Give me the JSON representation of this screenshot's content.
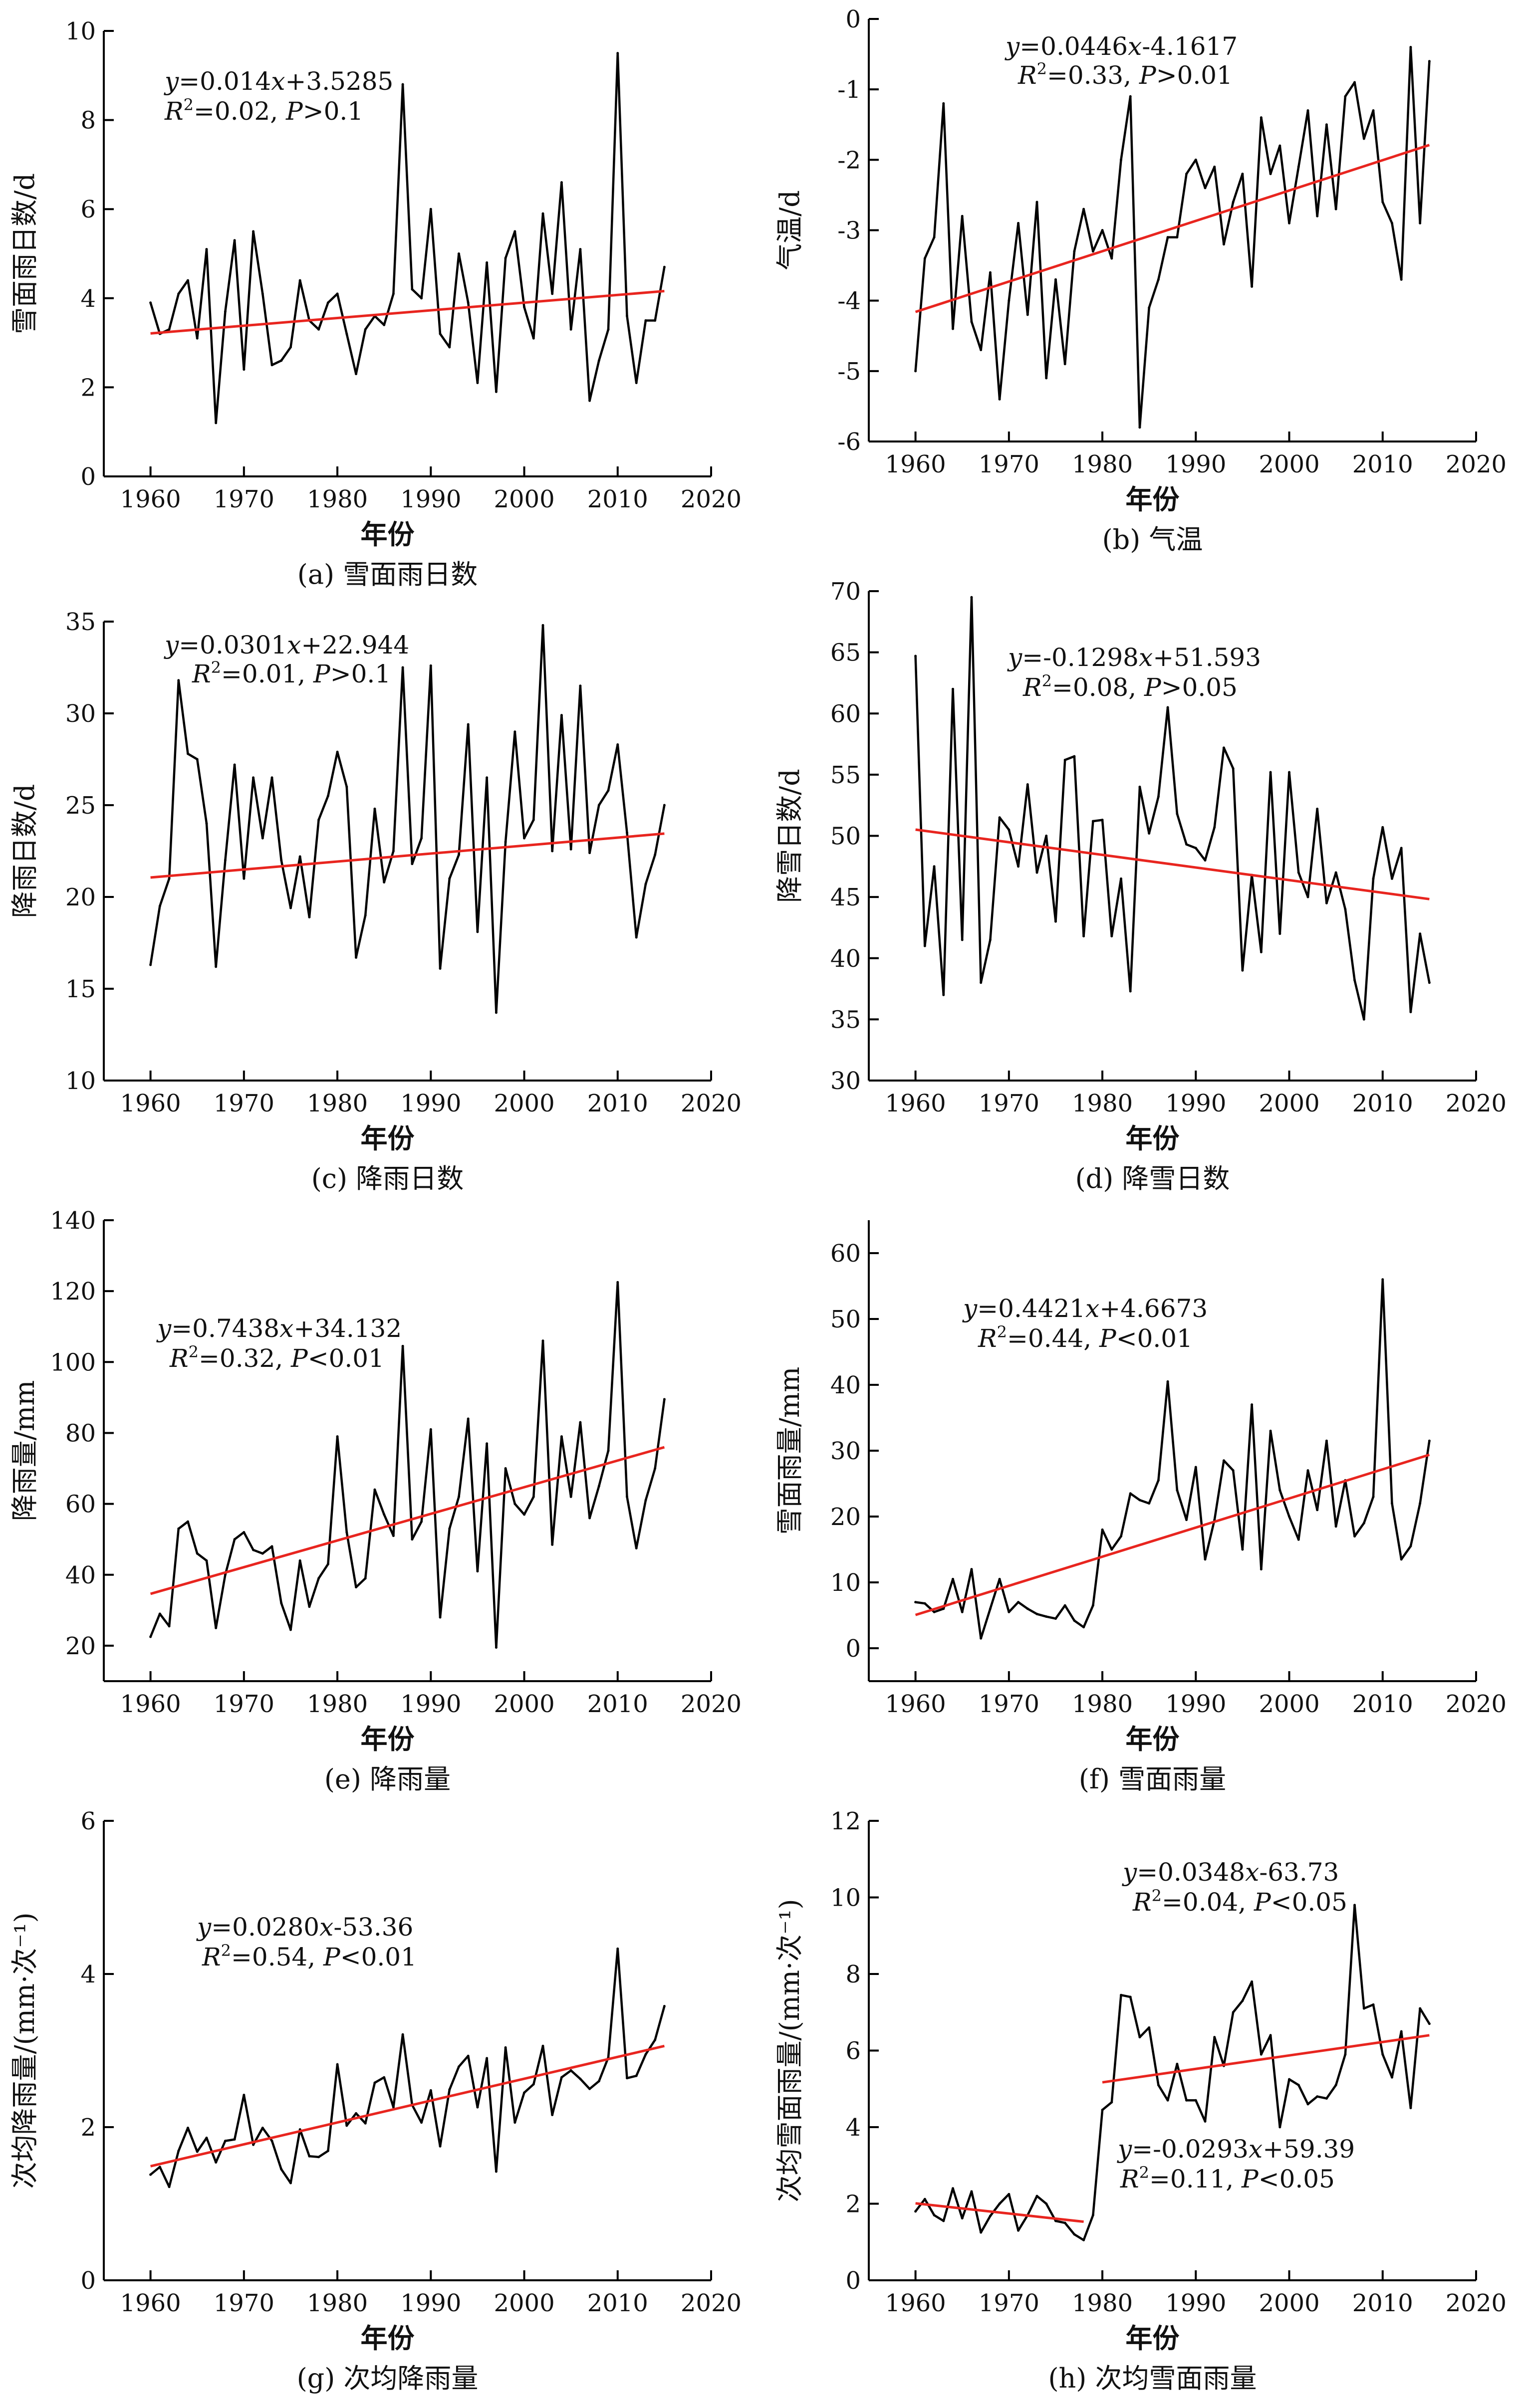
{
  "chart_data": [
    {
      "id": "a",
      "type": "line",
      "caption": "(a) 雪面雨日数",
      "xlabel": "年份",
      "ylabel": "雪面雨日数/d",
      "xlim": [
        1955,
        2020
      ],
      "ylim": [
        0,
        10
      ],
      "xticks": [
        1960,
        1970,
        1980,
        1990,
        2000,
        2010,
        2020
      ],
      "yticks": [
        0,
        2,
        4,
        6,
        8,
        10
      ],
      "x": [
        1960,
        1961,
        1962,
        1963,
        1964,
        1965,
        1966,
        1967,
        1968,
        1969,
        1970,
        1971,
        1972,
        1973,
        1974,
        1975,
        1976,
        1977,
        1978,
        1979,
        1980,
        1981,
        1982,
        1983,
        1984,
        1985,
        1986,
        1987,
        1988,
        1989,
        1990,
        1991,
        1992,
        1993,
        1994,
        1995,
        1996,
        1997,
        1998,
        1999,
        2000,
        2001,
        2002,
        2003,
        2004,
        2005,
        2006,
        2007,
        2008,
        2009,
        2010,
        2011,
        2012,
        2013,
        2014,
        2015
      ],
      "values": [
        3.9,
        3.2,
        3.3,
        4.1,
        4.4,
        3.1,
        5.1,
        1.2,
        3.7,
        5.3,
        2.4,
        5.5,
        4.1,
        2.5,
        2.6,
        2.9,
        4.4,
        3.5,
        3.3,
        3.9,
        4.1,
        3.2,
        2.3,
        3.3,
        3.6,
        3.4,
        4.1,
        8.8,
        4.2,
        4.0,
        6.0,
        3.2,
        2.9,
        5.0,
        3.9,
        2.1,
        4.8,
        1.9,
        4.9,
        5.5,
        3.8,
        3.1,
        5.9,
        4.1,
        6.6,
        3.3,
        5.1,
        1.7,
        2.6,
        3.3,
        9.5,
        3.6,
        2.1,
        3.5,
        3.5,
        4.7
      ],
      "trend": {
        "x": [
          1960,
          2015
        ],
        "y": [
          3.21,
          4.16
        ]
      },
      "annotations": [
        {
          "text": "y=0.014x+3.5285"
        },
        {
          "text": "R²=0.02, P>0.1"
        }
      ]
    },
    {
      "id": "b",
      "type": "line",
      "caption": "(b) 气温",
      "xlabel": "年份",
      "ylabel": "气温/d",
      "xlim": [
        1955,
        2020
      ],
      "ylim": [
        -6,
        0
      ],
      "xticks": [
        1960,
        1970,
        1980,
        1990,
        2000,
        2010,
        2020
      ],
      "yticks": [
        0,
        -1,
        -2,
        -3,
        -4,
        -5,
        -6
      ],
      "x": [
        1960,
        1961,
        1962,
        1963,
        1964,
        1965,
        1966,
        1967,
        1968,
        1969,
        1970,
        1971,
        1972,
        1973,
        1974,
        1975,
        1976,
        1977,
        1978,
        1979,
        1980,
        1981,
        1982,
        1983,
        1984,
        1985,
        1986,
        1987,
        1988,
        1989,
        1990,
        1991,
        1992,
        1993,
        1994,
        1995,
        1996,
        1997,
        1998,
        1999,
        2000,
        2001,
        2002,
        2003,
        2004,
        2005,
        2006,
        2007,
        2008,
        2009,
        2010,
        2011,
        2012,
        2013,
        2014,
        2015
      ],
      "values": [
        -5.0,
        -3.4,
        -3.1,
        -1.2,
        -4.4,
        -2.8,
        -4.3,
        -4.7,
        -3.6,
        -5.4,
        -4.0,
        -2.9,
        -4.2,
        -2.6,
        -5.1,
        -3.7,
        -4.9,
        -3.3,
        -2.7,
        -3.3,
        -3.0,
        -3.4,
        -2.0,
        -1.1,
        -5.8,
        -4.1,
        -3.7,
        -3.1,
        -3.1,
        -2.2,
        -2.0,
        -2.4,
        -2.1,
        -3.2,
        -2.6,
        -2.2,
        -3.8,
        -1.4,
        -2.2,
        -1.8,
        -2.9,
        -2.1,
        -1.3,
        -2.8,
        -1.5,
        -2.7,
        -1.1,
        -0.9,
        -1.7,
        -1.3,
        -2.6,
        -2.9,
        -3.7,
        -0.4,
        -2.9,
        -0.6
      ],
      "trend": {
        "x": [
          1960,
          2015
        ],
        "y": [
          -4.16,
          -1.79
        ]
      },
      "annotations": [
        {
          "text": "y=0.0446x-4.1617"
        },
        {
          "text": "R²=0.33, P>0.01"
        }
      ]
    },
    {
      "id": "c",
      "type": "line",
      "caption": "(c) 降雨日数",
      "xlabel": "年份",
      "ylabel": "降雨日数/d",
      "xlim": [
        1955,
        2020
      ],
      "ylim": [
        10,
        35
      ],
      "xticks": [
        1960,
        1970,
        1980,
        1990,
        2000,
        2010,
        2020
      ],
      "yticks": [
        10,
        15,
        20,
        25,
        30,
        35
      ],
      "x": [
        1960,
        1961,
        1962,
        1963,
        1964,
        1965,
        1966,
        1967,
        1968,
        1969,
        1970,
        1971,
        1972,
        1973,
        1974,
        1975,
        1976,
        1977,
        1978,
        1979,
        1980,
        1981,
        1982,
        1983,
        1984,
        1985,
        1986,
        1987,
        1988,
        1989,
        1990,
        1991,
        1992,
        1993,
        1994,
        1995,
        1996,
        1997,
        1998,
        1999,
        2000,
        2001,
        2002,
        2003,
        2004,
        2005,
        2006,
        2007,
        2008,
        2009,
        2010,
        2011,
        2012,
        2013,
        2014,
        2015
      ],
      "values": [
        16.3,
        19.5,
        21.0,
        31.8,
        27.8,
        27.5,
        24.0,
        16.2,
        22.0,
        27.2,
        21.0,
        26.5,
        23.2,
        26.5,
        22.0,
        19.4,
        22.2,
        18.9,
        24.2,
        25.5,
        27.9,
        26.0,
        16.7,
        19.0,
        24.8,
        20.8,
        22.5,
        32.5,
        21.8,
        23.2,
        32.6,
        16.1,
        21.0,
        22.3,
        29.4,
        18.1,
        26.5,
        13.7,
        23.0,
        29.0,
        23.2,
        24.2,
        34.8,
        22.5,
        29.9,
        22.6,
        31.5,
        22.4,
        25.0,
        25.8,
        28.3,
        23.5,
        17.8,
        20.7,
        22.3,
        25.0
      ],
      "trend": {
        "x": [
          1960,
          2015
        ],
        "y": [
          21.06,
          23.45
        ]
      },
      "annotations": [
        {
          "text": "y=0.0301x+22.944"
        },
        {
          "text": "R²=0.01, P>0.1"
        }
      ]
    },
    {
      "id": "d",
      "type": "line",
      "caption": "(d) 降雪日数",
      "xlabel": "年份",
      "ylabel": "降雪日数/d",
      "xlim": [
        1955,
        2020
      ],
      "ylim": [
        30,
        70
      ],
      "xticks": [
        1960,
        1970,
        1980,
        1990,
        2000,
        2010,
        2020
      ],
      "yticks": [
        30,
        35,
        40,
        45,
        50,
        55,
        60,
        65,
        70
      ],
      "x": [
        1960,
        1961,
        1962,
        1963,
        1964,
        1965,
        1966,
        1967,
        1968,
        1969,
        1970,
        1971,
        1972,
        1973,
        1974,
        1975,
        1976,
        1977,
        1978,
        1979,
        1980,
        1981,
        1982,
        1983,
        1984,
        1985,
        1986,
        1987,
        1988,
        1989,
        1990,
        1991,
        1992,
        1993,
        1994,
        1995,
        1996,
        1997,
        1998,
        1999,
        2000,
        2001,
        2002,
        2003,
        2004,
        2005,
        2006,
        2007,
        2008,
        2009,
        2010,
        2011,
        2012,
        2013,
        2014,
        2015
      ],
      "values": [
        64.7,
        41.0,
        47.5,
        37.0,
        62.0,
        41.5,
        69.5,
        38.0,
        41.5,
        51.5,
        50.5,
        47.5,
        54.2,
        47.0,
        50.0,
        43.0,
        56.2,
        56.5,
        41.8,
        51.2,
        51.3,
        41.8,
        46.5,
        37.3,
        54.0,
        50.2,
        53.2,
        60.5,
        51.8,
        49.3,
        49.0,
        48.0,
        50.7,
        57.2,
        55.5,
        39.0,
        46.8,
        40.5,
        55.2,
        42.0,
        55.2,
        47.0,
        45.0,
        52.2,
        44.5,
        47.0,
        44.0,
        38.2,
        35.0,
        46.5,
        50.7,
        46.5,
        49.0,
        35.6,
        42.0,
        38.0
      ],
      "trend": {
        "x": [
          1960,
          2015
        ],
        "y": [
          50.51,
          44.83
        ]
      },
      "annotations": [
        {
          "text": "y=-0.1298x+51.593"
        },
        {
          "text": "R²=0.08, P>0.05"
        }
      ]
    },
    {
      "id": "e",
      "type": "line",
      "caption": "(e) 降雨量",
      "xlabel": "年份",
      "ylabel": "降雨量/mm",
      "xlim": [
        1955,
        2020
      ],
      "ylim": [
        10,
        140
      ],
      "xticks": [
        1960,
        1970,
        1980,
        1990,
        2000,
        2010,
        2020
      ],
      "yticks": [
        20,
        40,
        60,
        80,
        100,
        120,
        140
      ],
      "x": [
        1960,
        1961,
        1962,
        1963,
        1964,
        1965,
        1966,
        1967,
        1968,
        1969,
        1970,
        1971,
        1972,
        1973,
        1974,
        1975,
        1976,
        1977,
        1978,
        1979,
        1980,
        1981,
        1982,
        1983,
        1984,
        1985,
        1986,
        1987,
        1988,
        1989,
        1990,
        1991,
        1992,
        1993,
        1994,
        1995,
        1996,
        1997,
        1998,
        1999,
        2000,
        2001,
        2002,
        2003,
        2004,
        2005,
        2006,
        2007,
        2008,
        2009,
        2010,
        2011,
        2012,
        2013,
        2014,
        2015
      ],
      "values": [
        22.5,
        29.0,
        25.5,
        53.0,
        55.0,
        46.0,
        44.0,
        25.0,
        40.0,
        50.0,
        52.0,
        47.0,
        46.0,
        48.0,
        32.0,
        24.5,
        44.0,
        31.0,
        39.0,
        43.0,
        79.0,
        52.0,
        36.5,
        39.0,
        64.0,
        57.0,
        51.0,
        104.5,
        50.0,
        55.0,
        81.0,
        28.0,
        53.0,
        62.0,
        84.0,
        41.0,
        77.0,
        19.5,
        70.0,
        60.0,
        57.0,
        62.0,
        106.0,
        48.5,
        79.0,
        62.0,
        83.0,
        56.0,
        65.0,
        75.0,
        122.5,
        62.0,
        47.5,
        61.0,
        70.0,
        89.5
      ],
      "trend": {
        "x": [
          1960,
          2015
        ],
        "y": [
          34.63,
          75.98
        ]
      },
      "annotations": [
        {
          "text": "y=0.7438x+34.132"
        },
        {
          "text": "R²=0.32, P<0.01"
        }
      ]
    },
    {
      "id": "f",
      "type": "line",
      "caption": "(f) 雪面雨量",
      "xlabel": "年份",
      "ylabel": "雪面雨量/mm",
      "xlim": [
        1955,
        2020
      ],
      "ylim": [
        -5,
        65
      ],
      "xticks": [
        1960,
        1970,
        1980,
        1990,
        2000,
        2010,
        2020
      ],
      "yticks": [
        0,
        10,
        20,
        30,
        40,
        50,
        60
      ],
      "x": [
        1960,
        1961,
        1962,
        1963,
        1964,
        1965,
        1966,
        1967,
        1968,
        1969,
        1970,
        1971,
        1972,
        1973,
        1974,
        1975,
        1976,
        1977,
        1978,
        1979,
        1980,
        1981,
        1982,
        1983,
        1984,
        1985,
        1986,
        1987,
        1988,
        1989,
        1990,
        1991,
        1992,
        1993,
        1994,
        1995,
        1996,
        1997,
        1998,
        1999,
        2000,
        2001,
        2002,
        2003,
        2004,
        2005,
        2006,
        2007,
        2008,
        2009,
        2010,
        2011,
        2012,
        2013,
        2014,
        2015
      ],
      "values": [
        7.0,
        6.8,
        5.5,
        6.0,
        10.5,
        5.5,
        12.0,
        1.5,
        6.0,
        10.5,
        5.5,
        7.0,
        6.0,
        5.2,
        4.8,
        4.5,
        6.5,
        4.2,
        3.2,
        6.5,
        18.0,
        15.0,
        17.0,
        23.5,
        22.5,
        22.0,
        25.5,
        40.5,
        24.0,
        19.5,
        27.5,
        13.5,
        19.5,
        28.5,
        27.0,
        15.0,
        37.0,
        12.0,
        33.0,
        24.0,
        20.0,
        16.5,
        27.0,
        21.0,
        31.5,
        18.5,
        25.5,
        17.0,
        19.0,
        23.0,
        56.0,
        22.0,
        13.5,
        15.5,
        22.0,
        31.5
      ],
      "trend": {
        "x": [
          1960,
          2015
        ],
        "y": [
          5.06,
          29.38
        ]
      },
      "annotations": [
        {
          "text": "y=0.4421x+4.6673"
        },
        {
          "text": "R²=0.44, P<0.01"
        }
      ]
    },
    {
      "id": "g",
      "type": "line",
      "caption": "(g) 次均降雨量",
      "xlabel": "年份",
      "ylabel": "次均降雨量/(mm·次⁻¹)",
      "xlim": [
        1955,
        2020
      ],
      "ylim": [
        0,
        6
      ],
      "xticks": [
        1960,
        1970,
        1980,
        1990,
        2000,
        2010,
        2020
      ],
      "yticks": [
        0,
        2,
        4,
        6
      ],
      "x": [
        1960,
        1961,
        1962,
        1963,
        1964,
        1965,
        1966,
        1967,
        1968,
        1969,
        1970,
        1971,
        1972,
        1973,
        1974,
        1975,
        1976,
        1977,
        1978,
        1979,
        1980,
        1981,
        1982,
        1983,
        1984,
        1985,
        1986,
        1987,
        1988,
        1989,
        1990,
        1991,
        1992,
        1993,
        1994,
        1995,
        1996,
        1997,
        1998,
        1999,
        2000,
        2001,
        2002,
        2003,
        2004,
        2005,
        2006,
        2007,
        2008,
        2009,
        2010,
        2011,
        2012,
        2013,
        2014,
        2015
      ],
      "values": [
        1.38,
        1.48,
        1.22,
        1.69,
        1.99,
        1.68,
        1.86,
        1.54,
        1.82,
        1.84,
        2.42,
        1.77,
        1.99,
        1.82,
        1.45,
        1.27,
        1.97,
        1.62,
        1.61,
        1.69,
        2.82,
        2.02,
        2.18,
        2.05,
        2.58,
        2.65,
        2.26,
        3.21,
        2.29,
        2.06,
        2.48,
        1.75,
        2.49,
        2.79,
        2.93,
        2.26,
        2.9,
        1.42,
        3.04,
        2.06,
        2.45,
        2.56,
        3.06,
        2.16,
        2.65,
        2.74,
        2.63,
        2.5,
        2.6,
        2.91,
        4.33,
        2.64,
        2.67,
        2.95,
        3.14,
        3.58
      ],
      "trend": {
        "x": [
          1960,
          2015
        ],
        "y": [
          1.49,
          3.06
        ]
      },
      "annotations": [
        {
          "text": "y=0.0280x-53.36"
        },
        {
          "text": "R²=0.54, P<0.01"
        }
      ]
    },
    {
      "id": "h",
      "type": "line",
      "caption": "(h) 次均雪面雨量",
      "xlabel": "年份",
      "ylabel": "次均雪面雨量/(mm·次⁻¹)",
      "xlim": [
        1955,
        2020
      ],
      "ylim": [
        0,
        12
      ],
      "xticks": [
        1960,
        1970,
        1980,
        1990,
        2000,
        2010,
        2020
      ],
      "yticks": [
        0,
        2,
        4,
        6,
        8,
        10,
        12
      ],
      "x": [
        1960,
        1961,
        1962,
        1963,
        1964,
        1965,
        1966,
        1967,
        1968,
        1969,
        1970,
        1971,
        1972,
        1973,
        1974,
        1975,
        1976,
        1977,
        1978,
        1979,
        1980,
        1981,
        1982,
        1983,
        1984,
        1985,
        1986,
        1987,
        1988,
        1989,
        1990,
        1991,
        1992,
        1993,
        1994,
        1995,
        1996,
        1997,
        1998,
        1999,
        2000,
        2001,
        2002,
        2003,
        2004,
        2005,
        2006,
        2007,
        2008,
        2009,
        2010,
        2011,
        2012,
        2013,
        2014,
        2015
      ],
      "values": [
        1.8,
        2.12,
        1.7,
        1.55,
        2.4,
        1.62,
        2.32,
        1.25,
        1.68,
        2.0,
        2.25,
        1.3,
        1.7,
        2.2,
        2.0,
        1.55,
        1.5,
        1.2,
        1.05,
        1.7,
        4.45,
        4.65,
        7.45,
        7.4,
        6.35,
        6.6,
        5.1,
        4.7,
        5.65,
        4.7,
        4.7,
        4.15,
        6.35,
        5.6,
        7.0,
        7.3,
        7.8,
        5.9,
        6.4,
        4.0,
        5.25,
        5.1,
        4.6,
        4.8,
        4.75,
        5.1,
        5.9,
        9.8,
        7.1,
        7.2,
        5.9,
        5.3,
        6.5,
        4.5,
        7.1,
        6.7
      ],
      "trend_segments": [
        {
          "x": [
            1960,
            1978
          ],
          "y": [
            2.01,
            1.53
          ]
        },
        {
          "x": [
            1980,
            2015
          ],
          "y": [
            5.17,
            6.4
          ]
        }
      ],
      "annotations": [
        {
          "text": "y=0.0348x-63.73"
        },
        {
          "text": "R²=0.04, P<0.05"
        },
        {
          "text": "y=-0.0293x+59.39"
        },
        {
          "text": "R²=0.11, P<0.05"
        }
      ]
    }
  ]
}
